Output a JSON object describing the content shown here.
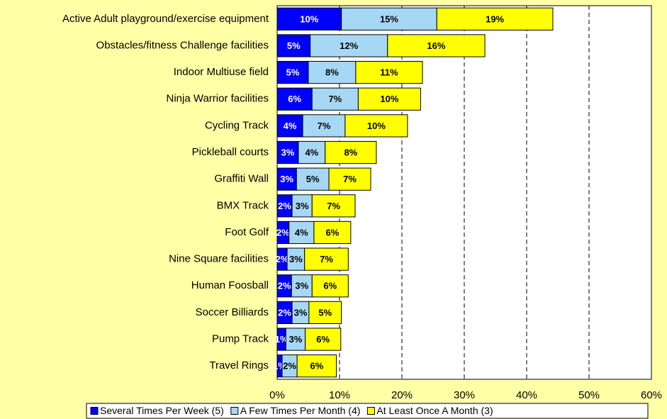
{
  "chart_data": {
    "type": "stacked-bar-horizontal",
    "categories": [
      "Active Adult playground/exercise equipment",
      "Obstacles/fitness Challenge facilities",
      "Indoor Multiuse field",
      "Ninja Warrior facilities",
      "Cycling Track",
      "Pickleball courts",
      "Graffiti Wall",
      "BMX Track",
      "Foot Golf",
      "Nine Square facilities",
      "Human Foosball",
      "Soccer Billiards",
      "Pump Track",
      "Travel Rings"
    ],
    "series": [
      {
        "name": "Several Times Per Week (5)",
        "color": "#0000ff",
        "values": [
          10.3,
          5.3,
          5.0,
          5.6,
          4.1,
          3.4,
          3.1,
          2.4,
          1.9,
          1.6,
          2.3,
          2.4,
          1.4,
          0.8
        ],
        "value_labels": [
          "10%",
          "5%",
          "5%",
          "6%",
          "4%",
          "3%",
          "3%",
          "2%",
          "2%",
          "2%",
          "2%",
          "2%",
          "1%",
          "1%"
        ]
      },
      {
        "name": "A Few Times Per Month (4)",
        "color": "#a6d8f5",
        "values": [
          15.3,
          12.4,
          7.6,
          7.4,
          6.8,
          4.3,
          5.2,
          3.2,
          4.0,
          2.8,
          3.3,
          2.7,
          3.1,
          2.4
        ],
        "value_labels": [
          "15%",
          "12%",
          "8%",
          "7%",
          "7%",
          "4%",
          "5%",
          "3%",
          "4%",
          "3%",
          "3%",
          "3%",
          "3%",
          "2%"
        ]
      },
      {
        "name": "At Least Once A Month (3)",
        "color": "#ffff00",
        "values": [
          18.6,
          15.6,
          10.7,
          10.0,
          10.0,
          8.2,
          6.7,
          6.9,
          5.9,
          7.0,
          5.8,
          5.2,
          5.7,
          6.3
        ],
        "value_labels": [
          "19%",
          "16%",
          "11%",
          "10%",
          "10%",
          "8%",
          "7%",
          "7%",
          "6%",
          "7%",
          "6%",
          "5%",
          "6%",
          "6%"
        ]
      }
    ],
    "xlim": [
      0,
      60
    ],
    "xticks": [
      {
        "value": 0,
        "label": "0%"
      },
      {
        "value": 10,
        "label": "10%"
      },
      {
        "value": 20,
        "label": "20%"
      },
      {
        "value": 30,
        "label": "30%"
      },
      {
        "value": 40,
        "label": "40%"
      },
      {
        "value": 50,
        "label": "50%"
      },
      {
        "value": 60,
        "label": "60%"
      }
    ],
    "grid": true,
    "legend": "bottom"
  }
}
